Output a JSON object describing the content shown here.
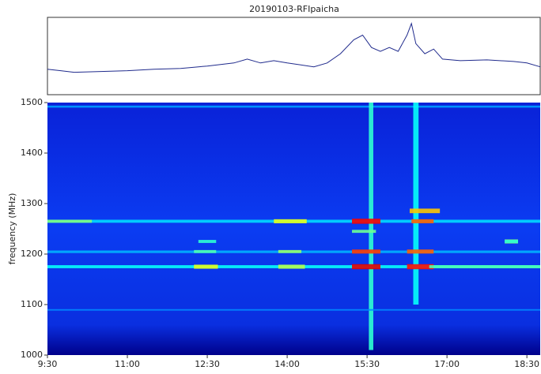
{
  "chart_data": [
    {
      "type": "line",
      "title": "20190103-RFIpaicha",
      "color": "#1f2a8c",
      "x": [
        570,
        585,
        600,
        630,
        660,
        690,
        720,
        750,
        780,
        795,
        810,
        825,
        840,
        870,
        885,
        900,
        915,
        925,
        935,
        945,
        955,
        965,
        975,
        980,
        985,
        995,
        1005,
        1015,
        1035,
        1065,
        1095,
        1110,
        1125
      ],
      "values": [
        0.33,
        0.31,
        0.29,
        0.3,
        0.31,
        0.33,
        0.34,
        0.37,
        0.41,
        0.46,
        0.41,
        0.44,
        0.41,
        0.36,
        0.41,
        0.53,
        0.71,
        0.77,
        0.61,
        0.56,
        0.61,
        0.56,
        0.77,
        0.92,
        0.66,
        0.53,
        0.59,
        0.46,
        0.44,
        0.45,
        0.43,
        0.41,
        0.36
      ],
      "xlim": [
        570,
        1125
      ],
      "ylim": [
        0,
        1
      ]
    },
    {
      "type": "heatmap",
      "ylabel": "frequency (MHz)",
      "xlim": [
        570,
        1125
      ],
      "ylim": [
        1000,
        1500
      ],
      "xticks": [
        {
          "value": 570,
          "label": "9:30"
        },
        {
          "value": 660,
          "label": "11:00"
        },
        {
          "value": 750,
          "label": "12:30"
        },
        {
          "value": 840,
          "label": "14:00"
        },
        {
          "value": 930,
          "label": "15:30"
        },
        {
          "value": 1020,
          "label": "17:00"
        },
        {
          "value": 1110,
          "label": "18:30"
        }
      ],
      "yticks": [
        1000,
        1100,
        1200,
        1300,
        1400,
        1500
      ],
      "t_start": [
        570,
        570,
        570,
        570,
        932,
        982,
        570,
        825,
        913,
        980,
        735,
        830,
        913,
        975,
        1000,
        735,
        830,
        913,
        975,
        1085,
        740,
        1085,
        978,
        913,
        570
      ],
      "t_end": [
        1125,
        1125,
        1125,
        1125,
        937,
        988,
        620,
        862,
        945,
        1005,
        762,
        860,
        945,
        1005,
        1125,
        760,
        856,
        945,
        1005,
        1100,
        760,
        1100,
        1012,
        940,
        1125
      ],
      "f_low": [
        1262,
        1172,
        1202,
        1490,
        1010,
        1100,
        1262,
        1261,
        1260,
        1261,
        1171,
        1171,
        1170,
        1170,
        1172,
        1202,
        1202,
        1201,
        1201,
        1221,
        1222,
        1222,
        1281,
        1242,
        1088
      ],
      "f_high": [
        1268,
        1178,
        1207,
        1494,
        1500,
        1500,
        1268,
        1269,
        1270,
        1269,
        1179,
        1179,
        1180,
        1180,
        1178,
        1208,
        1208,
        1209,
        1209,
        1229,
        1228,
        1228,
        1290,
        1248,
        1091
      ],
      "level": [
        0.34,
        0.38,
        0.3,
        0.28,
        0.42,
        0.38,
        0.5,
        0.6,
        0.88,
        0.78,
        0.6,
        0.55,
        0.9,
        0.86,
        0.45,
        0.45,
        0.52,
        0.82,
        0.78,
        0.5,
        0.42,
        0.42,
        0.68,
        0.48,
        0.26
      ]
    }
  ]
}
